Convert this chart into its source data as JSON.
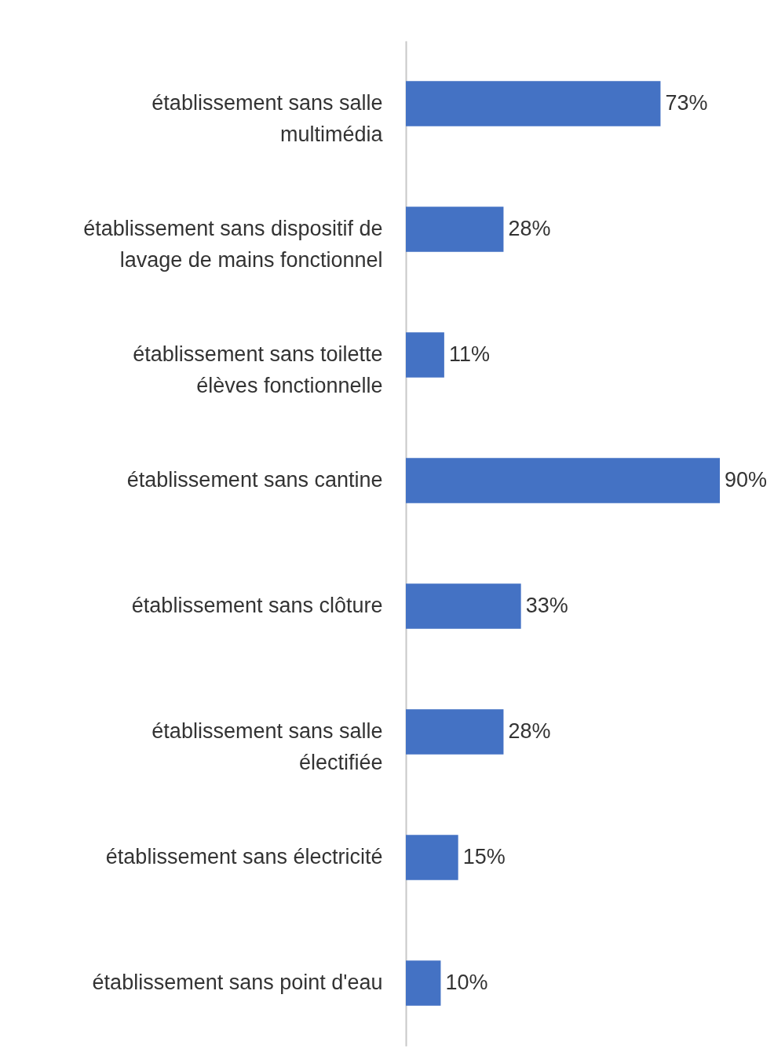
{
  "chart_data": {
    "type": "bar",
    "orientation": "horizontal",
    "categories": [
      "établissement sans salle\nmultimédia",
      "établissement sans dispositif de\nlavage de mains fonctionnel",
      "établissement sans  toilette\nélèves fonctionnelle",
      "établissement sans cantine",
      "établissement sans clôture",
      "établissement sans salle\nélectifiée",
      "établissement sans électricité",
      "établissement sans point d'eau"
    ],
    "values": [
      73,
      28,
      11,
      90,
      33,
      28,
      15,
      10
    ],
    "value_labels": [
      "73%",
      "28%",
      "11%",
      "90%",
      "33%",
      "28%",
      "15%",
      "10%"
    ],
    "color": "#4472c4",
    "tick_labels": "y"
  }
}
